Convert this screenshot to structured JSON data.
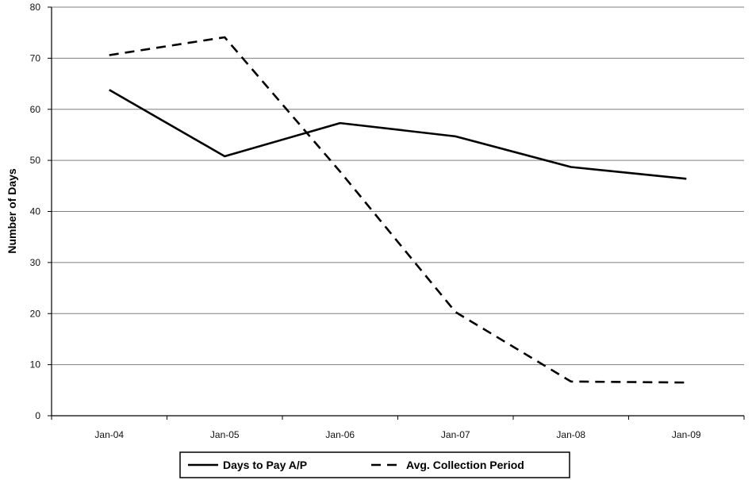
{
  "chart_data": {
    "type": "line",
    "categories": [
      "Jan-04",
      "Jan-05",
      "Jan-06",
      "Jan-07",
      "Jan-08",
      "Jan-09"
    ],
    "series": [
      {
        "name": "Days to Pay A/P",
        "values": [
          63.8,
          50.8,
          57.3,
          54.7,
          48.7,
          46.4
        ],
        "color": "#000000",
        "line_style": "solid"
      },
      {
        "name": "Avg. Collection Period",
        "values": [
          70.6,
          74.1,
          47.8,
          20.3,
          6.7,
          6.5
        ],
        "color": "#000000",
        "line_style": "dashed"
      }
    ],
    "xlabel": "",
    "ylabel": "Number of Days",
    "ylim": [
      0,
      80
    ],
    "yticks": [
      0,
      10,
      20,
      30,
      40,
      50,
      60,
      70,
      80
    ],
    "grid": "horizontal",
    "legend_position": "bottom"
  }
}
